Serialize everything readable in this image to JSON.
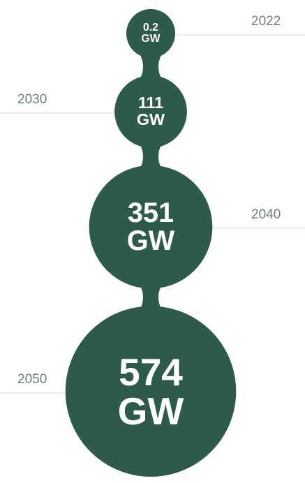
{
  "chart_data": {
    "type": "bubble",
    "categories": [
      "2022",
      "2030",
      "2040",
      "2050"
    ],
    "values": [
      0.2,
      111,
      351,
      574
    ],
    "value_labels": [
      "0.2 GW",
      "111 GW",
      "351 GW",
      "574 GW"
    ],
    "color": "#2d5a4a"
  }
}
